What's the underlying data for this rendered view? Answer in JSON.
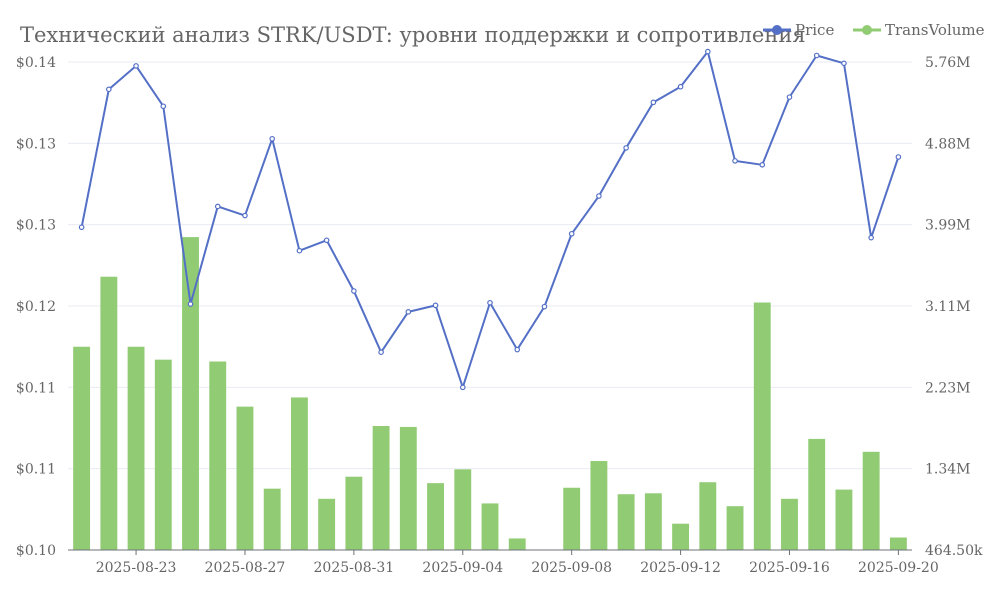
{
  "chart_data": {
    "type": "bar+line",
    "title": "Технический анализ STRK/USDT: уровни поддержки и сопротивления",
    "x": [
      "2025-08-21",
      "2025-08-22",
      "2025-08-23",
      "2025-08-24",
      "2025-08-25",
      "2025-08-26",
      "2025-08-27",
      "2025-08-28",
      "2025-08-29",
      "2025-08-30",
      "2025-08-31",
      "2025-09-01",
      "2025-09-02",
      "2025-09-03",
      "2025-09-04",
      "2025-09-05",
      "2025-09-06",
      "2025-09-07",
      "2025-09-08",
      "2025-09-09",
      "2025-09-10",
      "2025-09-11",
      "2025-09-12",
      "2025-09-13",
      "2025-09-14",
      "2025-09-15",
      "2025-09-16",
      "2025-09-17",
      "2025-09-18",
      "2025-09-19",
      "2025-09-20"
    ],
    "x_tick_labels": [
      "2025-08-23",
      "2025-08-27",
      "2025-08-31",
      "2025-09-04",
      "2025-09-08",
      "2025-09-12",
      "2025-09-16",
      "2025-09-20"
    ],
    "series": [
      {
        "name": "Price",
        "axis": "left",
        "type": "line",
        "color": "#5470c6",
        "values": [
          0.1248,
          0.1354,
          0.1372,
          0.1341,
          0.1189,
          0.1264,
          0.1257,
          0.1316,
          0.123,
          0.1238,
          0.1199,
          0.1152,
          0.1183,
          0.1188,
          0.1125,
          0.119,
          0.1154,
          0.1187,
          0.1243,
          0.1272,
          0.1309,
          0.1344,
          0.1356,
          0.1383,
          0.1299,
          0.1296,
          0.1348,
          0.138,
          0.1374,
          0.124,
          0.1302
        ]
      },
      {
        "name": "TransVolume",
        "axis": "right",
        "type": "bar",
        "color": "#91cc75",
        "values": [
          2670000,
          3430000,
          2670000,
          2530000,
          3860000,
          2510000,
          2020000,
          1130000,
          2120000,
          1020000,
          1260000,
          1810000,
          1800000,
          1190000,
          1340000,
          970000,
          590000,
          464500,
          1140000,
          1430000,
          1070000,
          1080000,
          750000,
          1200000,
          940000,
          3150000,
          1020000,
          1670000,
          1120000,
          1530000,
          600000
        ]
      }
    ],
    "y_left": {
      "min": 0.1,
      "max": 0.1375,
      "tick_labels": [
        "$0.10",
        "$0.11",
        "$0.11",
        "$0.12",
        "$0.13",
        "$0.13",
        "$0.14"
      ]
    },
    "y_right": {
      "min": 464500,
      "max": 5760000,
      "tick_labels": [
        "464.50k",
        "1.34M",
        "2.23M",
        "3.11M",
        "3.99M",
        "4.88M",
        "5.76M"
      ]
    },
    "legend": {
      "position": "top-right",
      "items": [
        "Price",
        "TransVolume"
      ]
    },
    "grid": true
  }
}
